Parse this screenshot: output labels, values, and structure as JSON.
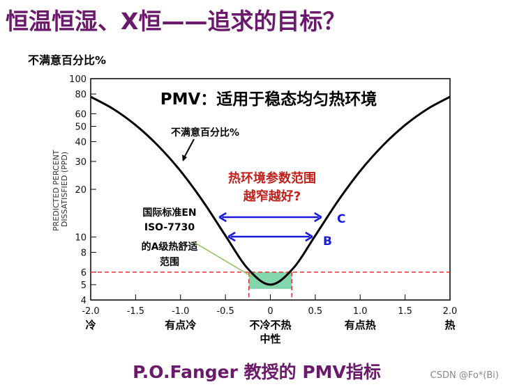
{
  "slide_title": "恒温恒湿、X恒——追求的目标？",
  "footer": "P.O.Fanger 教授的 PMV指标",
  "watermark": "CSDN @Fo*(Bi)",
  "colors": {
    "title": "#6b1a6b",
    "curve": "#000000",
    "arrows": "#1a1adc",
    "dashed": "#e83030",
    "comfort_zone": "#6fcf9f",
    "red_text": "#c0201a",
    "pointer": "#8fc060"
  },
  "chart_data": {
    "type": "line",
    "title": "PMV：适用于稳态均匀热环境",
    "ylabel_cn": "不满意百分比%",
    "ylabel": "PREDICTED PERCENT DISSATISFIED (PPD)",
    "y_scale": "log",
    "ylim": [
      4,
      100
    ],
    "xlim": [
      -2.0,
      2.0
    ],
    "y_ticks": [
      "4",
      "5",
      "6",
      "8",
      "10",
      "20",
      "30",
      "40",
      "50",
      "60",
      "80",
      "100"
    ],
    "x_ticks": [
      "-2.0",
      "-1.5",
      "-1.0",
      "-0.5",
      "0",
      "0.5",
      "1.0",
      "1.5",
      "2.0"
    ],
    "x_categories": [
      {
        "x": -2.0,
        "label": "冷"
      },
      {
        "x": -1.0,
        "label": "有点冷"
      },
      {
        "x": 0,
        "label": "不冷不热",
        "sub": "中性"
      },
      {
        "x": 1.0,
        "label": "有点热"
      },
      {
        "x": 2.0,
        "label": "热"
      }
    ],
    "grid": false,
    "series": [
      {
        "name": "不满意百分比%",
        "x": [
          -2.0,
          -1.75,
          -1.5,
          -1.25,
          -1.0,
          -0.75,
          -0.5,
          -0.25,
          0,
          0.25,
          0.5,
          0.75,
          1.0,
          1.25,
          1.5,
          1.75,
          2.0
        ],
        "y": [
          76.8,
          64.4,
          50.9,
          37.7,
          26.1,
          16.8,
          10.2,
          6.3,
          5.0,
          6.3,
          10.2,
          16.8,
          26.1,
          37.7,
          50.9,
          64.4,
          76.8
        ]
      }
    ],
    "threshold_ppd": 6,
    "comfort_range_pmv": [
      -0.2,
      0.2
    ],
    "annotations": {
      "question_line1": "热环境参数范围",
      "question_line2": "越窄越好?",
      "standard_lines": [
        "国际标准EN",
        "ISO-7730",
        "的A级热舒适",
        "范围"
      ],
      "range_B": {
        "label": "B",
        "pmv": [
          -0.5,
          0.5
        ]
      },
      "range_C": {
        "label": "C",
        "pmv": [
          -0.6,
          0.6
        ]
      }
    }
  }
}
